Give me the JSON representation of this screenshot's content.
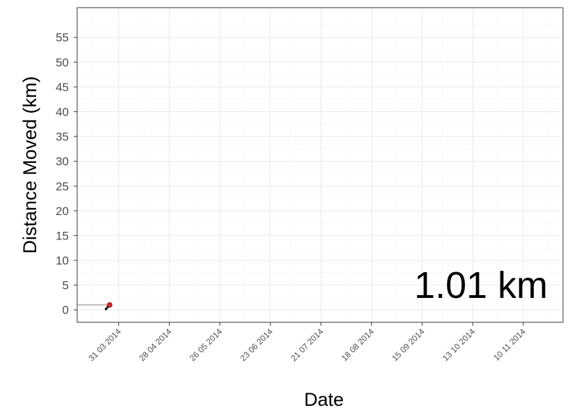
{
  "chart_data": {
    "type": "line",
    "xlabel": "Date",
    "ylabel": "Distance Moved (km)",
    "annotation": "1.01 km",
    "x_ticks": [
      "31 03 2014",
      "28 04 2014",
      "26 05 2014",
      "23 06 2014",
      "21 07 2014",
      "18 08 2014",
      "15 09 2014",
      "13 10 2014",
      "10 11 2014"
    ],
    "y_ticks": [
      0,
      5,
      10,
      15,
      20,
      25,
      30,
      35,
      40,
      45,
      50,
      55
    ],
    "xlim": [
      "2014-03-08",
      "2014-12-02"
    ],
    "ylim": [
      -2.5,
      61
    ],
    "grid": true,
    "series": [
      {
        "color": "#000000",
        "points": [
          {
            "x": "2014-03-24",
            "y": 0.2
          },
          {
            "x": "2014-03-25",
            "y": 0.6
          },
          {
            "x": "2014-03-26",
            "y": 1.01
          }
        ]
      }
    ],
    "current_point": {
      "x": "2014-03-26",
      "y": 1.01,
      "color": "#d62728"
    },
    "reference_line": {
      "y": 1.01,
      "color": "#999999"
    }
  }
}
